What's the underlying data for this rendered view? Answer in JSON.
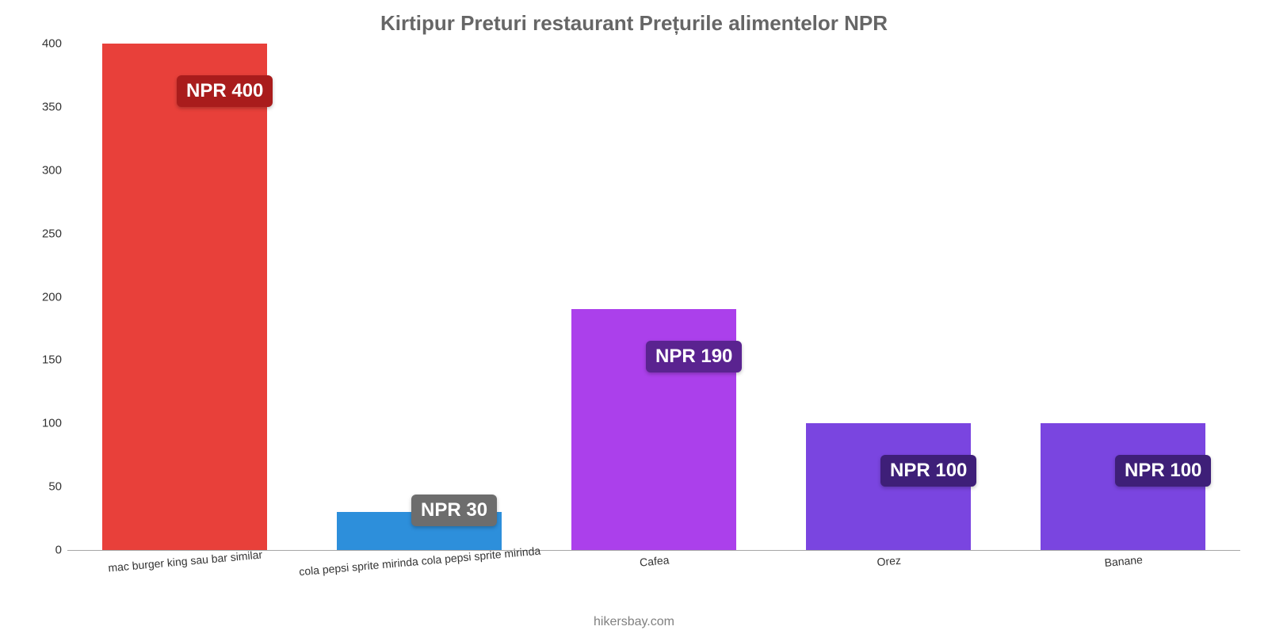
{
  "chart": {
    "type": "bar",
    "title": "Kirtipur Preturi restaurant Prețurile alimentelor NPR",
    "title_color": "#666666",
    "title_fontsize": 26,
    "credit": "hikersbay.com",
    "credit_color": "#808080",
    "credit_fontsize": 16,
    "background_color": "#ffffff",
    "axis_color": "#333333",
    "ylim": [
      0,
      400
    ],
    "yticks": [
      0,
      50,
      100,
      150,
      200,
      250,
      300,
      350,
      400
    ],
    "ytick_fontsize": 15,
    "ytick_color": "#333333",
    "xlabel_fontsize": 14,
    "xlabel_color": "#333333",
    "xlabel_rotation_deg": -5,
    "bar_width_ratio": 0.7,
    "value_label_fontsize": 24,
    "categories": [
      "mac burger king sau bar similar",
      "cola pepsi sprite mirinda cola pepsi sprite mirinda",
      "Cafea",
      "Orez",
      "Banane"
    ],
    "values": [
      400,
      30,
      190,
      100,
      100
    ],
    "value_labels": [
      "NPR 400",
      "NPR 30",
      "NPR 190",
      "NPR 100",
      "NPR 100"
    ],
    "bar_colors": [
      "#e8403a",
      "#2d8fdb",
      "#ab40eb",
      "#7a45e0",
      "#7a45e0"
    ],
    "badge_colors": [
      "#a91c1c",
      "#6d6d6d",
      "#5a2390",
      "#3e1f78",
      "#3e1f78"
    ]
  }
}
